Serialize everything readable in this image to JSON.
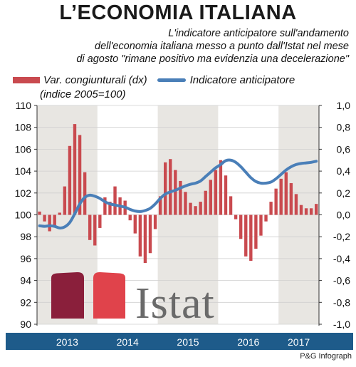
{
  "header": {
    "title": "L’ECONOMIA ITALIANA",
    "subtitle_lines": [
      "L'indicatore anticipatore sull'andamento",
      "dell'economia italiana messo a punto dall'Istat nel mese",
      "di agosto \"rimane positivo ma evidenzia una decelerazione\""
    ]
  },
  "legend": {
    "bars_label": "Var. congiunturali (dx)",
    "line_label": "Indicatore anticipatore",
    "index_note": "(indice 2005=100)"
  },
  "logo": {
    "text": "Istat"
  },
  "credit": "P&G Infograph",
  "colors": {
    "bars": "#c94a4f",
    "line": "#4a7fb8",
    "shade": "#e8e6e2",
    "axis_band": "#1e5b8a",
    "logo_dark": "#8a1f3b",
    "logo_light": "#e0434b",
    "logo_text": "#6a6a6a"
  },
  "chart_data": {
    "type": "bar+line",
    "x_tick_labels": [
      "2013",
      "2014",
      "2015",
      "2016",
      "2017"
    ],
    "left_axis": {
      "ylim": [
        90,
        110
      ],
      "ticks": [
        "110",
        "108",
        "106",
        "104",
        "102",
        "100",
        "98",
        "96",
        "94",
        "92",
        "90"
      ]
    },
    "right_axis": {
      "ylim": [
        -1.0,
        1.0
      ],
      "ticks": [
        "1,0",
        "0,8",
        "0,6",
        "0,4",
        "0,2",
        "0,0",
        "-0,2",
        "-0,4",
        "-0,6",
        "-0,8",
        "-1,0"
      ]
    },
    "shaded_years": [
      "2013",
      "2015",
      "2017"
    ],
    "months": [
      "2013-01",
      "2013-02",
      "2013-03",
      "2013-04",
      "2013-05",
      "2013-06",
      "2013-07",
      "2013-08",
      "2013-09",
      "2013-10",
      "2013-11",
      "2013-12",
      "2014-01",
      "2014-02",
      "2014-03",
      "2014-04",
      "2014-05",
      "2014-06",
      "2014-07",
      "2014-08",
      "2014-09",
      "2014-10",
      "2014-11",
      "2014-12",
      "2015-01",
      "2015-02",
      "2015-03",
      "2015-04",
      "2015-05",
      "2015-06",
      "2015-07",
      "2015-08",
      "2015-09",
      "2015-10",
      "2015-11",
      "2015-12",
      "2016-01",
      "2016-02",
      "2016-03",
      "2016-04",
      "2016-05",
      "2016-06",
      "2016-07",
      "2016-08",
      "2016-09",
      "2016-10",
      "2016-11",
      "2016-12",
      "2017-01",
      "2017-02",
      "2017-03",
      "2017-04",
      "2017-05",
      "2017-06",
      "2017-07",
      "2017-08"
    ],
    "series": [
      {
        "name": "Var. congiunturali (dx)",
        "axis": "right",
        "style": "bar",
        "values": [
          0.03,
          -0.06,
          -0.15,
          -0.1,
          0.02,
          0.26,
          0.63,
          0.83,
          0.73,
          0.39,
          -0.23,
          -0.28,
          -0.12,
          0.16,
          0.12,
          0.26,
          0.16,
          0.13,
          -0.05,
          -0.17,
          -0.38,
          -0.44,
          -0.35,
          -0.13,
          0.17,
          0.48,
          0.51,
          0.41,
          0.31,
          0.21,
          0.11,
          0.08,
          0.12,
          0.22,
          0.32,
          0.41,
          0.5,
          0.36,
          0.17,
          -0.04,
          -0.22,
          -0.38,
          -0.42,
          -0.31,
          -0.19,
          -0.06,
          0.12,
          0.24,
          0.33,
          0.39,
          0.29,
          0.19,
          0.09,
          0.06,
          0.06,
          0.1
        ]
      },
      {
        "name": "Indicatore anticipatore",
        "axis": "left",
        "style": "line",
        "values": [
          99.0,
          98.95,
          99.0,
          98.95,
          98.8,
          98.9,
          99.3,
          100.1,
          101.0,
          101.6,
          101.8,
          101.7,
          101.5,
          101.2,
          101.0,
          100.9,
          100.8,
          100.7,
          100.5,
          100.35,
          100.3,
          100.4,
          100.6,
          101.0,
          101.5,
          101.9,
          102.1,
          102.25,
          102.45,
          102.65,
          102.8,
          102.9,
          103.1,
          103.5,
          103.9,
          104.3,
          104.6,
          104.95,
          105.0,
          104.8,
          104.4,
          103.9,
          103.4,
          103.05,
          102.9,
          102.9,
          103.0,
          103.3,
          103.7,
          104.1,
          104.4,
          104.6,
          104.7,
          104.75,
          104.8,
          104.9
        ]
      }
    ]
  }
}
